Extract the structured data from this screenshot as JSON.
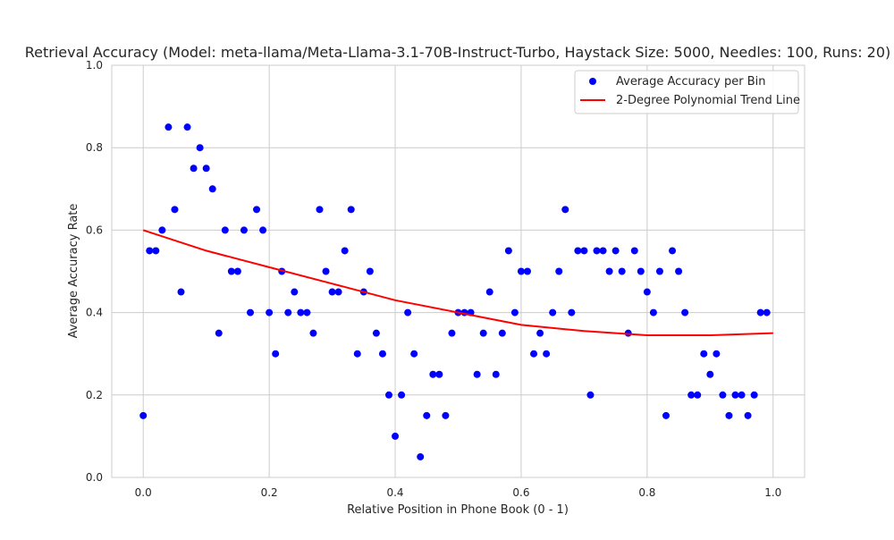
{
  "chart_data": {
    "type": "scatter",
    "title": "Retrieval Accuracy (Model: meta-llama/Meta-Llama-3.1-70B-Instruct-Turbo, Haystack Size: 5000, Needles: 100, Runs: 20)",
    "xlabel": "Relative Position in Phone Book (0 - 1)",
    "ylabel": "Average Accuracy Rate",
    "xlim": [
      -0.05,
      1.05
    ],
    "ylim": [
      0,
      1.0
    ],
    "x_ticks": [
      "0.0",
      "0.2",
      "0.4",
      "0.6",
      "0.8",
      "1.0"
    ],
    "y_ticks": [
      "0.0",
      "0.2",
      "0.4",
      "0.6",
      "0.8",
      "1.0"
    ],
    "grid": true,
    "legend_position": "top-right",
    "series": [
      {
        "name": "Average Accuracy per Bin",
        "kind": "scatter",
        "color": "#0000ff",
        "x": [
          0.0,
          0.01,
          0.02,
          0.03,
          0.04,
          0.05,
          0.06,
          0.07,
          0.08,
          0.09,
          0.1,
          0.11,
          0.12,
          0.13,
          0.14,
          0.15,
          0.16,
          0.17,
          0.18,
          0.19,
          0.2,
          0.21,
          0.22,
          0.23,
          0.24,
          0.25,
          0.26,
          0.27,
          0.28,
          0.29,
          0.3,
          0.31,
          0.32,
          0.33,
          0.34,
          0.35,
          0.36,
          0.37,
          0.38,
          0.39,
          0.4,
          0.41,
          0.42,
          0.43,
          0.44,
          0.45,
          0.46,
          0.47,
          0.48,
          0.49,
          0.5,
          0.51,
          0.52,
          0.53,
          0.54,
          0.55,
          0.56,
          0.57,
          0.58,
          0.59,
          0.6,
          0.61,
          0.62,
          0.63,
          0.64,
          0.65,
          0.66,
          0.67,
          0.68,
          0.69,
          0.7,
          0.71,
          0.72,
          0.73,
          0.74,
          0.75,
          0.76,
          0.77,
          0.78,
          0.79,
          0.8,
          0.81,
          0.82,
          0.83,
          0.84,
          0.85,
          0.86,
          0.87,
          0.88,
          0.89,
          0.9,
          0.91,
          0.92,
          0.93,
          0.94,
          0.95,
          0.96,
          0.97,
          0.98,
          0.99
        ],
        "y": [
          0.15,
          0.55,
          0.55,
          0.6,
          0.85,
          0.65,
          0.45,
          0.85,
          0.75,
          0.8,
          0.75,
          0.7,
          0.35,
          0.6,
          0.5,
          0.5,
          0.6,
          0.4,
          0.65,
          0.6,
          0.4,
          0.3,
          0.5,
          0.4,
          0.45,
          0.4,
          0.4,
          0.35,
          0.65,
          0.5,
          0.45,
          0.45,
          0.55,
          0.65,
          0.3,
          0.45,
          0.5,
          0.35,
          0.3,
          0.2,
          0.1,
          0.2,
          0.4,
          0.3,
          0.05,
          0.15,
          0.25,
          0.25,
          0.15,
          0.35,
          0.4,
          0.4,
          0.4,
          0.25,
          0.35,
          0.45,
          0.25,
          0.35,
          0.55,
          0.4,
          0.5,
          0.5,
          0.3,
          0.35,
          0.3,
          0.4,
          0.5,
          0.65,
          0.4,
          0.55,
          0.55,
          0.2,
          0.55,
          0.55,
          0.5,
          0.55,
          0.5,
          0.35,
          0.55,
          0.5,
          0.45,
          0.4,
          0.5,
          0.15,
          0.55,
          0.5,
          0.4,
          0.2,
          0.2,
          0.3,
          0.25,
          0.3,
          0.2,
          0.15,
          0.2,
          0.2,
          0.15,
          0.2,
          0.4,
          0.4
        ]
      },
      {
        "name": "2-Degree Polynomial Trend Line",
        "kind": "line",
        "color": "#ff0000",
        "x": [
          0.0,
          0.1,
          0.2,
          0.3,
          0.4,
          0.5,
          0.6,
          0.7,
          0.8,
          0.9,
          1.0
        ],
        "y": [
          0.6,
          0.55,
          0.51,
          0.47,
          0.43,
          0.4,
          0.37,
          0.355,
          0.345,
          0.345,
          0.35
        ]
      }
    ]
  }
}
